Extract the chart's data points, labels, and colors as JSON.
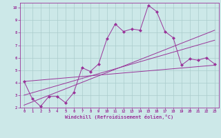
{
  "bg_color": "#cce8e8",
  "line_color": "#993399",
  "grid_color": "#aacccc",
  "xlim": [
    -0.5,
    23.5
  ],
  "ylim": [
    2,
    10.4
  ],
  "xticks": [
    0,
    1,
    2,
    3,
    4,
    5,
    6,
    7,
    8,
    9,
    10,
    11,
    12,
    13,
    14,
    15,
    16,
    17,
    18,
    19,
    20,
    21,
    22,
    23
  ],
  "yticks": [
    2,
    3,
    4,
    5,
    6,
    7,
    8,
    9,
    10
  ],
  "xlabel": "Windchill (Refroidissement éolien,°C)",
  "data_line": {
    "x": [
      0,
      1,
      2,
      3,
      4,
      5,
      6,
      7,
      8,
      9,
      10,
      11,
      12,
      13,
      14,
      15,
      16,
      17,
      18,
      19,
      20,
      21,
      22,
      23
    ],
    "y": [
      4.1,
      2.7,
      2.1,
      2.9,
      2.9,
      2.4,
      3.2,
      5.2,
      4.9,
      5.5,
      7.5,
      8.7,
      8.1,
      8.3,
      8.2,
      10.2,
      9.7,
      8.1,
      7.6,
      5.4,
      5.9,
      5.8,
      6.0,
      5.5
    ]
  },
  "regression_lines": [
    {
      "x": [
        0,
        23
      ],
      "y": [
        4.1,
        5.4
      ]
    },
    {
      "x": [
        0,
        23
      ],
      "y": [
        3.0,
        7.4
      ]
    },
    {
      "x": [
        0,
        23
      ],
      "y": [
        2.2,
        8.2
      ]
    }
  ],
  "figsize": [
    3.2,
    2.0
  ],
  "dpi": 100
}
